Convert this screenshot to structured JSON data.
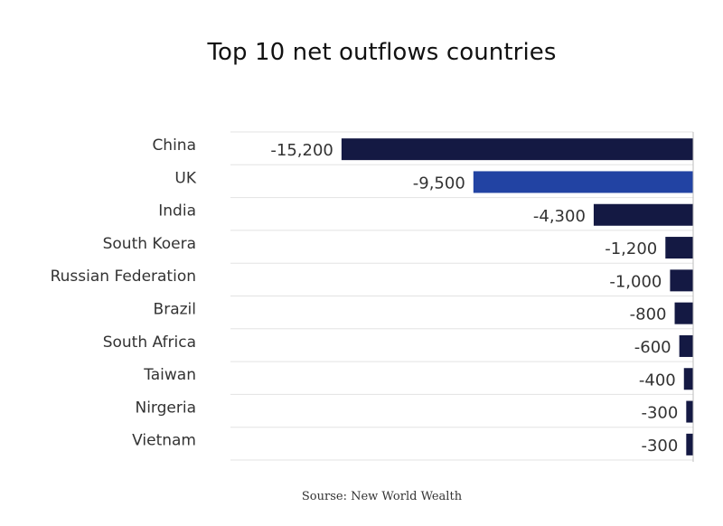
{
  "chart_data": {
    "type": "bar",
    "orientation": "horizontal",
    "title": "Top 10 net outflows countries",
    "categories": [
      "China",
      "UK",
      "India",
      "South Koera",
      "Russian Federation",
      "Brazil",
      "South Africa",
      "Taiwan",
      "Nirgeria",
      "Vietnam"
    ],
    "values": [
      -15200,
      -9500,
      -4300,
      -1200,
      -1000,
      -800,
      -600,
      -400,
      -300,
      -300
    ],
    "value_labels": [
      "-15,200",
      "-9,500",
      "-4,300",
      "-1,200",
      "-1,000",
      "-800",
      "-600",
      "-400",
      "-300",
      "-300"
    ],
    "highlight_category": "UK",
    "colors": {
      "default": "#141943",
      "highlight": "#2243a3",
      "grid": "#e3e3e3"
    },
    "xlim": [
      -20000,
      0
    ],
    "xlabel": "",
    "ylabel": "",
    "grid": true,
    "legend": "none"
  },
  "source": "Sourse: New World Wealth"
}
